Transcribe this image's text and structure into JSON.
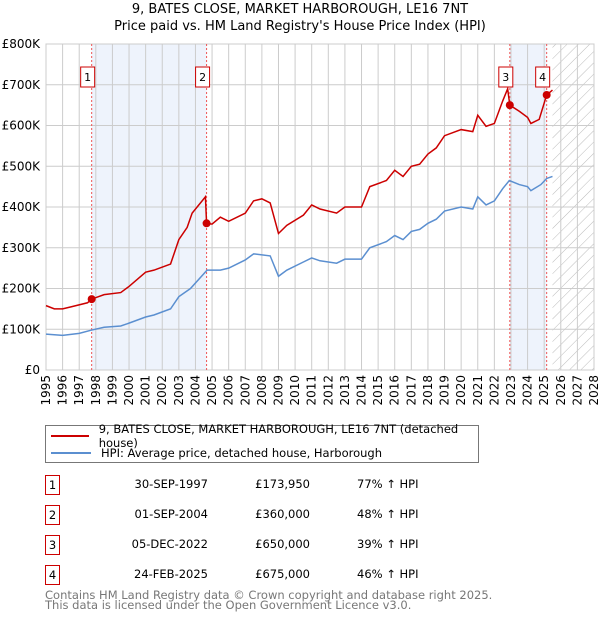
{
  "title": "9, BATES CLOSE, MARKET HARBOROUGH, LE16 7NT",
  "subtitle": "Price paid vs. HM Land Registry's House Price Index (HPI)",
  "colors": {
    "property": "#cc0000",
    "hpi": "#5b8fd0",
    "shade": "#eef3fc"
  },
  "chart_data": {
    "type": "line",
    "xlim": [
      1995,
      2028
    ],
    "ylim": [
      0,
      800000
    ],
    "x_ticks": [
      "1995",
      "1996",
      "1997",
      "1998",
      "1999",
      "2000",
      "2001",
      "2002",
      "2003",
      "2004",
      "2005",
      "2006",
      "2007",
      "2008",
      "2009",
      "2010",
      "2011",
      "2012",
      "2013",
      "2014",
      "2015",
      "2016",
      "2017",
      "2018",
      "2019",
      "2020",
      "2021",
      "2022",
      "2023",
      "2024",
      "2025",
      "2026",
      "2027",
      "2028"
    ],
    "y_ticks": [
      {
        "v": 0,
        "label": "£0"
      },
      {
        "v": 100000,
        "label": "£100K"
      },
      {
        "v": 200000,
        "label": "£200K"
      },
      {
        "v": 300000,
        "label": "£300K"
      },
      {
        "v": 400000,
        "label": "£400K"
      },
      {
        "v": 500000,
        "label": "£500K"
      },
      {
        "v": 600000,
        "label": "£600K"
      },
      {
        "v": 700000,
        "label": "£700K"
      },
      {
        "v": 800000,
        "label": "£800K"
      }
    ],
    "grid": true,
    "data_end": 2025.5,
    "series": [
      {
        "name": "9, BATES CLOSE, MARKET HARBOROUGH, LE16 7NT (detached house)",
        "color": "#cc0000",
        "points": [
          [
            1995,
            158
          ],
          [
            1995.5,
            150
          ],
          [
            1996,
            150
          ],
          [
            1996.5,
            155
          ],
          [
            1997.5,
            165
          ],
          [
            1997.75,
            174
          ],
          [
            1998.5,
            185
          ],
          [
            1999.5,
            190
          ],
          [
            2000,
            205
          ],
          [
            2001,
            240
          ],
          [
            2001.5,
            245
          ],
          [
            2002.5,
            260
          ],
          [
            2003,
            320
          ],
          [
            2003.5,
            350
          ],
          [
            2003.8,
            385
          ],
          [
            2004.5,
            420
          ],
          [
            2004.6,
            425
          ],
          [
            2004.67,
            360
          ],
          [
            2005,
            358
          ],
          [
            2005.5,
            375
          ],
          [
            2006,
            365
          ],
          [
            2007,
            385
          ],
          [
            2007.5,
            415
          ],
          [
            2008,
            420
          ],
          [
            2008.5,
            410
          ],
          [
            2009,
            335
          ],
          [
            2009.5,
            355
          ],
          [
            2010.5,
            380
          ],
          [
            2011,
            405
          ],
          [
            2011.5,
            395
          ],
          [
            2012.5,
            385
          ],
          [
            2013,
            400
          ],
          [
            2014,
            400
          ],
          [
            2014.5,
            450
          ],
          [
            2015.5,
            465
          ],
          [
            2016,
            490
          ],
          [
            2016.5,
            475
          ],
          [
            2017,
            500
          ],
          [
            2017.5,
            505
          ],
          [
            2018,
            530
          ],
          [
            2018.5,
            545
          ],
          [
            2019,
            575
          ],
          [
            2020,
            590
          ],
          [
            2020.7,
            585
          ],
          [
            2021,
            625
          ],
          [
            2021.5,
            598
          ],
          [
            2022,
            605
          ],
          [
            2022.5,
            660
          ],
          [
            2022.8,
            690
          ],
          [
            2022.93,
            650
          ],
          [
            2023.5,
            635
          ],
          [
            2024,
            620
          ],
          [
            2024.2,
            605
          ],
          [
            2024.7,
            615
          ],
          [
            2025.15,
            675
          ],
          [
            2025.5,
            687
          ]
        ]
      },
      {
        "name": "HPI: Average price, detached house, Harborough",
        "color": "#5b8fd0",
        "points": [
          [
            1995,
            88
          ],
          [
            1996,
            85
          ],
          [
            1997,
            90
          ],
          [
            1997.75,
            98
          ],
          [
            1998.5,
            105
          ],
          [
            1999.5,
            108
          ],
          [
            2000,
            115
          ],
          [
            2001,
            130
          ],
          [
            2001.5,
            135
          ],
          [
            2002.5,
            150
          ],
          [
            2003,
            180
          ],
          [
            2003.7,
            200
          ],
          [
            2004.7,
            245
          ],
          [
            2005.5,
            245
          ],
          [
            2006,
            250
          ],
          [
            2007,
            270
          ],
          [
            2007.5,
            285
          ],
          [
            2008.5,
            280
          ],
          [
            2009,
            230
          ],
          [
            2009.5,
            245
          ],
          [
            2010.5,
            265
          ],
          [
            2011,
            275
          ],
          [
            2011.5,
            268
          ],
          [
            2012.5,
            262
          ],
          [
            2013,
            272
          ],
          [
            2014,
            272
          ],
          [
            2014.5,
            300
          ],
          [
            2015.5,
            315
          ],
          [
            2016,
            330
          ],
          [
            2016.5,
            320
          ],
          [
            2017,
            340
          ],
          [
            2017.5,
            345
          ],
          [
            2018,
            360
          ],
          [
            2018.5,
            370
          ],
          [
            2019,
            390
          ],
          [
            2020,
            400
          ],
          [
            2020.7,
            395
          ],
          [
            2021,
            425
          ],
          [
            2021.5,
            405
          ],
          [
            2022,
            415
          ],
          [
            2022.5,
            445
          ],
          [
            2022.9,
            465
          ],
          [
            2023.5,
            455
          ],
          [
            2024,
            450
          ],
          [
            2024.2,
            440
          ],
          [
            2024.8,
            455
          ],
          [
            2025.15,
            470
          ],
          [
            2025.5,
            475
          ]
        ]
      }
    ],
    "value_unit": "thousands GBP",
    "sales": [
      {
        "n": "1",
        "x": 1997.75,
        "y": 173950
      },
      {
        "n": "2",
        "x": 2004.67,
        "y": 360000
      },
      {
        "n": "3",
        "x": 2022.93,
        "y": 650000
      },
      {
        "n": "4",
        "x": 2025.15,
        "y": 675000
      }
    ],
    "shaded": [
      [
        1997.75,
        2004.67
      ],
      [
        2022.93,
        2025.15
      ]
    ]
  },
  "legend": {
    "property": "9, BATES CLOSE, MARKET HARBOROUGH, LE16 7NT (detached house)",
    "hpi": "HPI: Average price, detached house, Harborough"
  },
  "transactions": [
    {
      "n": "1",
      "date": "30-SEP-1997",
      "price": "£173,950",
      "hpi": "77% ↑ HPI"
    },
    {
      "n": "2",
      "date": "01-SEP-2004",
      "price": "£360,000",
      "hpi": "48% ↑ HPI"
    },
    {
      "n": "3",
      "date": "05-DEC-2022",
      "price": "£650,000",
      "hpi": "39% ↑ HPI"
    },
    {
      "n": "4",
      "date": "24-FEB-2025",
      "price": "£675,000",
      "hpi": "46% ↑ HPI"
    }
  ],
  "footer": [
    "Contains HM Land Registry data © Crown copyright and database right 2025.",
    "This data is licensed under the Open Government Licence v3.0."
  ]
}
